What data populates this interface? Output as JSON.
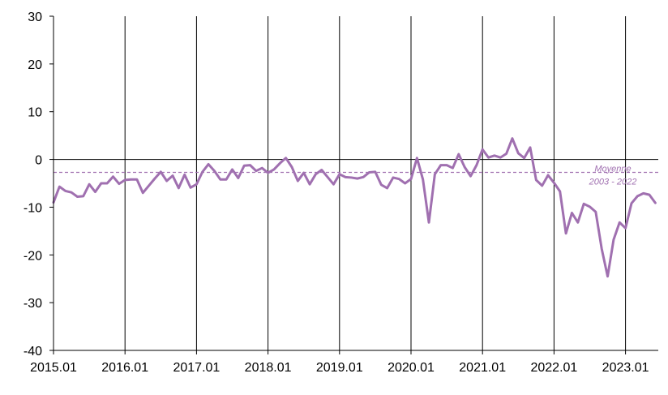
{
  "chart_data": {
    "type": "line",
    "title": "",
    "xlabel": "",
    "ylabel": "",
    "ylim": [
      -40,
      30
    ],
    "yticks": [
      30,
      20,
      10,
      0,
      -10,
      -20,
      -30,
      -40
    ],
    "xtick_labels": [
      "2015.01",
      "2016.01",
      "2017.01",
      "2018.01",
      "2019.01",
      "2020.01",
      "2021.01",
      "2022.01",
      "2023.01"
    ],
    "grid": "vertical lines at each January",
    "series": [
      {
        "color": "#a070b0",
        "x_start": "2015.01",
        "x_step": "month",
        "values": [
          -9,
          -5.7,
          -6.6,
          -6.9,
          -7.8,
          -7.7,
          -5.2,
          -6.8,
          -5,
          -5,
          -3.6,
          -5.1,
          -4.3,
          -4.2,
          -4.2,
          -7,
          -5.5,
          -4,
          -2.6,
          -4.5,
          -3.4,
          -6,
          -3.2,
          -5.9,
          -5.2,
          -2.6,
          -1,
          -2.4,
          -4.2,
          -4.2,
          -2.1,
          -3.9,
          -1.3,
          -1.2,
          -2.4,
          -1.8,
          -2.8,
          -2.1,
          -0.8,
          0.3,
          -1.6,
          -4.5,
          -2.8,
          -5.2,
          -3.1,
          -2.2,
          -3.7,
          -5.2,
          -3.1,
          -3.7,
          -3.8,
          -4,
          -3.7,
          -2.7,
          -2.6,
          -5.3,
          -6,
          -3.8,
          -4.1,
          -5,
          -4.1,
          0.3,
          -4.2,
          -13.2,
          -3.1,
          -1.2,
          -1.2,
          -1.8,
          1.1,
          -1.6,
          -3.5,
          -1.2,
          2.1,
          0.4,
          0.8,
          0.4,
          1.2,
          4.4,
          1.3,
          0.3,
          2.5,
          -4.3,
          -5.5,
          -3.3,
          -4.9,
          -6.7,
          -15.5,
          -11.2,
          -13.2,
          -9.3,
          -9.9,
          -11,
          -18.7,
          -24.5,
          -16.8,
          -13.2,
          -14.4,
          -9.2,
          -7.7,
          -7.1,
          -7.4,
          -9.1
        ]
      }
    ],
    "reference_line": {
      "value": -2.7,
      "label_line1": "Moyenne",
      "label_line2": "2003 - 2022",
      "color": "#a070b0"
    }
  }
}
